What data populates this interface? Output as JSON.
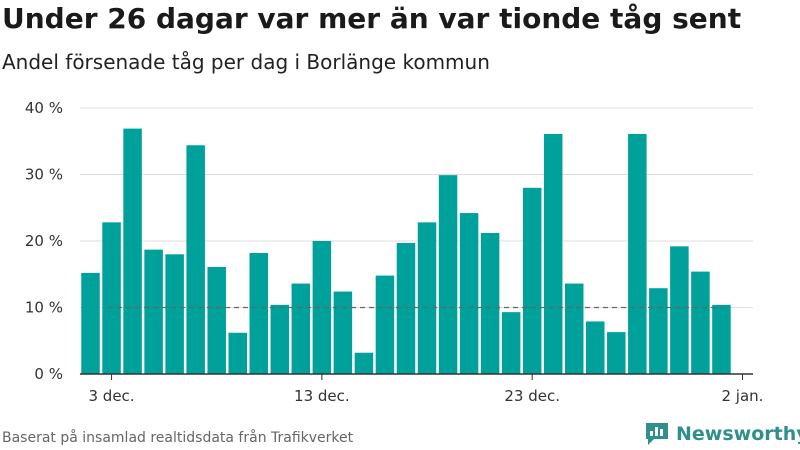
{
  "title": "Under 26 dagar var mer än var tionde tåg sent",
  "subtitle": "Andel försenade tåg per dag i Borlänge kommun",
  "footer": "Baserat på insamlad realtidsdata från Trafikverket",
  "logo_text": "Newsworthy",
  "colors": {
    "bar": "#00a19a",
    "grid": "#dddddd",
    "reference": "#666666",
    "axis": "#333333",
    "logo": "#2f8f8a"
  },
  "chart_data": {
    "type": "bar",
    "title": "Under 26 dagar var mer än var tionde tåg sent",
    "subtitle": "Andel försenade tåg per dag i Borlänge kommun",
    "xlabel": "",
    "ylabel": "",
    "x": [
      "2023-12-02",
      "2023-12-03",
      "2023-12-04",
      "2023-12-05",
      "2023-12-06",
      "2023-12-07",
      "2023-12-08",
      "2023-12-09",
      "2023-12-10",
      "2023-12-11",
      "2023-12-12",
      "2023-12-13",
      "2023-12-14",
      "2023-12-15",
      "2023-12-16",
      "2023-12-17",
      "2023-12-18",
      "2023-12-19",
      "2023-12-20",
      "2023-12-21",
      "2023-12-22",
      "2023-12-23",
      "2023-12-24",
      "2023-12-25",
      "2023-12-26",
      "2023-12-27",
      "2023-12-28",
      "2023-12-29",
      "2023-12-30",
      "2023-12-31",
      "2024-01-01"
    ],
    "values": [
      15.2,
      22.8,
      36.9,
      18.7,
      18.0,
      34.4,
      16.1,
      6.2,
      18.2,
      10.4,
      13.6,
      20.0,
      12.4,
      3.2,
      14.8,
      19.7,
      22.8,
      29.9,
      24.2,
      21.2,
      9.3,
      28.0,
      36.1,
      13.6,
      7.9,
      6.3,
      36.1,
      12.9,
      19.2,
      15.4,
      10.4
    ],
    "reference_line": 10,
    "ylim": [
      0,
      40
    ],
    "yticks": [
      0,
      10,
      20,
      30,
      40
    ],
    "ytick_labels": [
      "0 %",
      "10 %",
      "20 %",
      "30 %",
      "40 %"
    ],
    "xticks": [
      "2023-12-03",
      "2023-12-13",
      "2023-12-23",
      "2024-01-02"
    ],
    "xtick_labels": [
      "3 dec.",
      "13 dec.",
      "23 dec.",
      "2 jan."
    ],
    "grid": true
  }
}
